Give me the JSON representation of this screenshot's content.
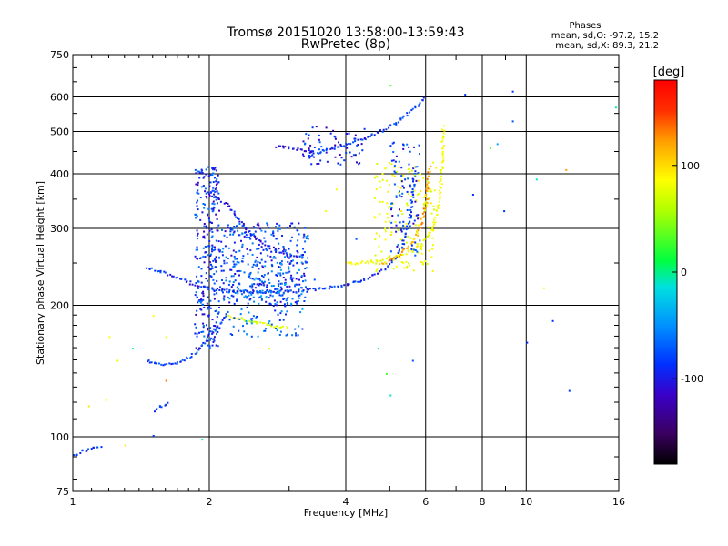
{
  "chart_data": {
    "type": "scatter",
    "title": "Tromsø 20151020 13:58:00-13:59:43",
    "subtitle": "RwPretec (8p)",
    "xlabel": "Frequency [MHz]",
    "ylabel": "Stationary phase Virtual Height [km]",
    "x_scale": "log",
    "y_scale": "log",
    "xlim": [
      1,
      16
    ],
    "ylim": [
      75,
      750
    ],
    "x_ticks": [
      1,
      2,
      4,
      6,
      8,
      10,
      16
    ],
    "x_tick_labels": [
      "1",
      "2",
      "4",
      "6",
      "8",
      "10",
      "16"
    ],
    "x_minor_ticks": [
      3,
      5,
      7,
      9
    ],
    "y_ticks": [
      75,
      100,
      200,
      300,
      400,
      500,
      600,
      750
    ],
    "y_tick_labels": [
      "75",
      "100",
      "200",
      "300",
      "400",
      "500",
      "600",
      "750"
    ],
    "grid": true,
    "phases_box": {
      "heading": "Phases",
      "line1": "mean, sd,O: -97.2, 15.2",
      "line2": "mean, sd,X:  89.3, 21.2"
    },
    "colorbar": {
      "label": "[deg]",
      "range": [
        -180,
        180
      ],
      "ticks": [
        100,
        0,
        -100
      ],
      "tick_labels": [
        "100",
        "0",
        "-100"
      ]
    },
    "traces": [
      {
        "freq": [
          1.0,
          1.04,
          1.08,
          1.12,
          1.16
        ],
        "height": [
          91,
          93,
          94,
          95,
          95
        ],
        "phase": -100
      },
      {
        "freq": [
          1.45,
          1.5,
          1.56,
          1.6,
          1.65,
          1.7,
          1.76,
          1.8,
          1.87,
          1.93,
          2.0,
          2.1,
          2.2
        ],
        "height": [
          150,
          148,
          147,
          147,
          148,
          149,
          151,
          153,
          157,
          163,
          172,
          182,
          195
        ],
        "phase": -95
      },
      {
        "freq": [
          1.5,
          1.54,
          1.58,
          1.62
        ],
        "height": [
          115,
          117,
          119,
          121
        ],
        "phase": -100
      },
      {
        "freq": [
          1.95,
          2.2,
          2.5,
          3.0,
          3.5,
          4.0,
          4.4,
          4.8,
          5.1,
          5.3,
          5.5,
          5.6,
          5.65
        ],
        "height": [
          220,
          217,
          215,
          216,
          219,
          224,
          231,
          241,
          256,
          276,
          310,
          365,
          420
        ],
        "phase": -100
      },
      {
        "freq": [
          1.45,
          1.55,
          1.65,
          1.75,
          1.85,
          1.95
        ],
        "height": [
          245,
          240,
          235,
          229,
          224,
          220
        ],
        "phase": -100
      },
      {
        "freq": [
          2.0,
          2.2,
          2.4,
          2.6,
          2.8,
          3.0,
          3.2
        ],
        "height": [
          360,
          340,
          300,
          280,
          268,
          262,
          258
        ],
        "phase": -110
      },
      {
        "freq": [
          3.3,
          3.6,
          4.0,
          4.4,
          4.8,
          5.2,
          5.6,
          6.0
        ],
        "height": [
          440,
          455,
          470,
          485,
          505,
          530,
          565,
          605
        ],
        "phase": -95
      },
      {
        "freq": [
          2.8,
          3.0,
          3.2,
          3.4
        ],
        "height": [
          465,
          460,
          455,
          450
        ],
        "phase": -115
      },
      {
        "freq": [
          4.0,
          4.6,
          5.2,
          5.8,
          6.2,
          6.4,
          6.5,
          6.55
        ],
        "height": [
          250,
          253,
          260,
          275,
          300,
          350,
          420,
          520
        ],
        "phase": 95
      },
      {
        "freq": [
          4.8,
          5.2,
          5.5,
          5.8,
          6.0,
          6.1
        ],
        "height": [
          250,
          260,
          275,
          300,
          350,
          420
        ],
        "phase": 140
      },
      {
        "freq": [
          2.2,
          2.6,
          3.0
        ],
        "height": [
          190,
          182,
          178
        ],
        "phase": 80
      }
    ],
    "scatter_points": [
      {
        "freq": 1.2,
        "height": 170,
        "phase": 100
      },
      {
        "freq": 1.25,
        "height": 150,
        "phase": 90
      },
      {
        "freq": 1.35,
        "height": 160,
        "phase": -20
      },
      {
        "freq": 1.5,
        "height": 190,
        "phase": 100
      },
      {
        "freq": 1.6,
        "height": 170,
        "phase": 90
      },
      {
        "freq": 1.6,
        "height": 135,
        "phase": 150
      },
      {
        "freq": 1.08,
        "height": 118,
        "phase": 110
      },
      {
        "freq": 1.18,
        "height": 122,
        "phase": 100
      },
      {
        "freq": 1.3,
        "height": 96,
        "phase": 110
      },
      {
        "freq": 1.5,
        "height": 101,
        "phase": -100
      },
      {
        "freq": 1.92,
        "height": 99,
        "phase": -20
      },
      {
        "freq": 2.7,
        "height": 160,
        "phase": 70
      },
      {
        "freq": 3.6,
        "height": 330,
        "phase": 95
      },
      {
        "freq": 3.8,
        "height": 370,
        "phase": 95
      },
      {
        "freq": 4.7,
        "height": 160,
        "phase": -10
      },
      {
        "freq": 4.9,
        "height": 140,
        "phase": 20
      },
      {
        "freq": 5.0,
        "height": 125,
        "phase": -30
      },
      {
        "freq": 5.0,
        "height": 640,
        "phase": 20
      },
      {
        "freq": 5.6,
        "height": 150,
        "phase": -90
      },
      {
        "freq": 7.3,
        "height": 610,
        "phase": -100
      },
      {
        "freq": 7.6,
        "height": 360,
        "phase": -100
      },
      {
        "freq": 8.3,
        "height": 460,
        "phase": 20
      },
      {
        "freq": 8.6,
        "height": 470,
        "phase": -60
      },
      {
        "freq": 8.9,
        "height": 330,
        "phase": -100
      },
      {
        "freq": 9.3,
        "height": 620,
        "phase": -100
      },
      {
        "freq": 9.3,
        "height": 530,
        "phase": -90
      },
      {
        "freq": 10.5,
        "height": 390,
        "phase": -30
      },
      {
        "freq": 10.9,
        "height": 220,
        "phase": 90
      },
      {
        "freq": 11.4,
        "height": 185,
        "phase": -100
      },
      {
        "freq": 12.2,
        "height": 410,
        "phase": 140
      },
      {
        "freq": 12.4,
        "height": 128,
        "phase": -100
      },
      {
        "freq": 15.7,
        "height": 570,
        "phase": -20
      },
      {
        "freq": 10.0,
        "height": 165,
        "phase": -100
      },
      {
        "freq": 4.2,
        "height": 285,
        "phase": -90
      },
      {
        "freq": 3.4,
        "height": 230,
        "phase": -90
      }
    ]
  }
}
